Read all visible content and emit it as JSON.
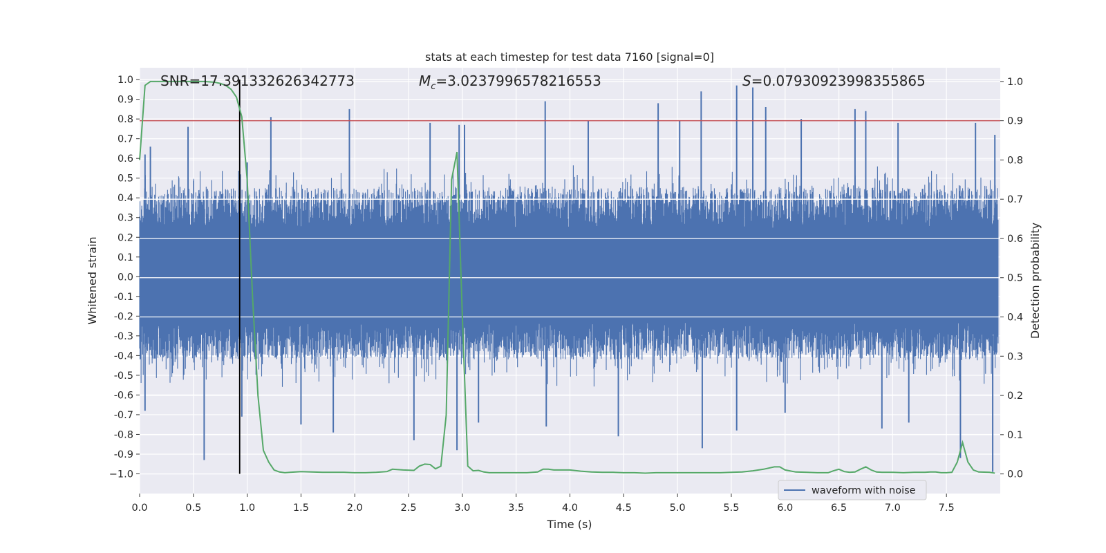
{
  "chart_data": {
    "type": "line",
    "title": "stats at each timestep for test data 7160 [signal=0]",
    "xlabel": "Time (s)",
    "ylabel_left": "Whitened strain",
    "ylabel_right": "Detection probability",
    "xlim": [
      0.0,
      8.0
    ],
    "ylim_left": [
      -1.1,
      1.06
    ],
    "ylim_right": [
      -0.05,
      1.035
    ],
    "x_ticks": [
      "0.0",
      "0.5",
      "1.0",
      "1.5",
      "2.0",
      "2.5",
      "3.0",
      "3.5",
      "4.0",
      "4.5",
      "5.0",
      "5.5",
      "6.0",
      "6.5",
      "7.0",
      "7.5"
    ],
    "x_tick_values": [
      0,
      0.5,
      1,
      1.5,
      2,
      2.5,
      3,
      3.5,
      4,
      4.5,
      5,
      5.5,
      6,
      6.5,
      7,
      7.5
    ],
    "y_left_ticks": [
      "1.0",
      "0.9",
      "0.8",
      "0.7",
      "0.6",
      "0.5",
      "0.4",
      "0.3",
      "0.2",
      "0.1",
      "0.0",
      "-0.1",
      "-0.2",
      "-0.3",
      "-0.4",
      "-0.5",
      "-0.6",
      "-0.7",
      "-0.8",
      "-0.9",
      "−1.0"
    ],
    "y_left_tick_values": [
      1.0,
      0.9,
      0.8,
      0.7,
      0.6,
      0.5,
      0.4,
      0.3,
      0.2,
      0.1,
      0.0,
      -0.1,
      -0.2,
      -0.3,
      -0.4,
      -0.5,
      -0.6,
      -0.7,
      -0.8,
      -0.9,
      -1.0
    ],
    "y_right_ticks": [
      "1.0",
      "0.9",
      "0.8",
      "0.7",
      "0.6",
      "0.5",
      "0.4",
      "0.3",
      "0.2",
      "0.1",
      "0.0"
    ],
    "y_right_tick_values": [
      1.0,
      0.9,
      0.8,
      0.7,
      0.6,
      0.5,
      0.4,
      0.3,
      0.2,
      0.1,
      0.0
    ],
    "annotations": {
      "snr": "SNR=17.391332626342773",
      "mc_symbol": "M",
      "mc_sub": "c",
      "mc_value": "=3.0237996578216553",
      "s_symbol": "S",
      "s_value": "=0.07930923998355865"
    },
    "threshold_line": {
      "y_right": 0.9,
      "color": "#c44e52"
    },
    "vertical_marker": {
      "x": 0.93,
      "y_range": [
        -1.0,
        1.0
      ],
      "color": "#000000"
    },
    "series": [
      {
        "name": "waveform with noise",
        "axis": "left",
        "color": "#4c72b0",
        "kind": "noise",
        "envelope_upper": 0.45,
        "envelope_lower": -0.42,
        "peaks_upper": [
          [
            0.05,
            0.62
          ],
          [
            0.1,
            0.66
          ],
          [
            0.45,
            0.76
          ],
          [
            1.0,
            0.58
          ],
          [
            1.22,
            0.81
          ],
          [
            1.95,
            0.85
          ],
          [
            2.7,
            0.78
          ],
          [
            2.97,
            0.77
          ],
          [
            3.02,
            0.77
          ],
          [
            3.77,
            0.89
          ],
          [
            4.17,
            0.79
          ],
          [
            4.82,
            0.88
          ],
          [
            5.02,
            0.79
          ],
          [
            5.22,
            0.94
          ],
          [
            5.55,
            0.97
          ],
          [
            5.7,
            0.96
          ],
          [
            5.82,
            0.86
          ],
          [
            6.15,
            0.8
          ],
          [
            6.65,
            0.85
          ],
          [
            6.75,
            0.84
          ],
          [
            7.05,
            0.78
          ],
          [
            7.77,
            0.78
          ],
          [
            7.95,
            0.72
          ]
        ],
        "peaks_lower": [
          [
            0.05,
            -0.68
          ],
          [
            0.6,
            -0.93
          ],
          [
            0.95,
            -0.71
          ],
          [
            1.5,
            -0.75
          ],
          [
            1.8,
            -0.79
          ],
          [
            2.55,
            -0.83
          ],
          [
            2.95,
            -0.88
          ],
          [
            3.15,
            -0.74
          ],
          [
            3.78,
            -0.76
          ],
          [
            4.45,
            -0.81
          ],
          [
            5.23,
            -0.87
          ],
          [
            5.55,
            -0.78
          ],
          [
            6.0,
            -0.69
          ],
          [
            6.9,
            -0.77
          ],
          [
            7.15,
            -0.74
          ],
          [
            7.63,
            -0.92
          ],
          [
            7.93,
            -0.99
          ]
        ]
      },
      {
        "name": "detection probability",
        "axis": "right",
        "color": "#55a868",
        "x": [
          0.0,
          0.05,
          0.1,
          0.2,
          0.3,
          0.4,
          0.5,
          0.6,
          0.7,
          0.75,
          0.8,
          0.85,
          0.9,
          0.95,
          1.0,
          1.05,
          1.1,
          1.15,
          1.2,
          1.25,
          1.3,
          1.35,
          1.4,
          1.5,
          1.6,
          1.7,
          1.8,
          1.9,
          2.0,
          2.1,
          2.2,
          2.3,
          2.35,
          2.45,
          2.55,
          2.6,
          2.65,
          2.7,
          2.75,
          2.8,
          2.85,
          2.9,
          2.95,
          3.0,
          3.05,
          3.1,
          3.15,
          3.2,
          3.25,
          3.3,
          3.4,
          3.5,
          3.6,
          3.7,
          3.75,
          3.8,
          3.85,
          3.9,
          4.0,
          4.1,
          4.2,
          4.3,
          4.4,
          4.5,
          4.6,
          4.7,
          4.8,
          4.9,
          5.0,
          5.1,
          5.2,
          5.3,
          5.4,
          5.5,
          5.6,
          5.7,
          5.8,
          5.9,
          5.95,
          6.0,
          6.1,
          6.2,
          6.3,
          6.4,
          6.45,
          6.5,
          6.55,
          6.6,
          6.65,
          6.7,
          6.75,
          6.8,
          6.85,
          6.9,
          7.0,
          7.1,
          7.2,
          7.3,
          7.35,
          7.4,
          7.45,
          7.5,
          7.55,
          7.6,
          7.65,
          7.7,
          7.75,
          7.8,
          7.9,
          7.95
        ],
        "y": [
          0.8,
          0.99,
          1.0,
          1.0,
          1.0,
          1.0,
          1.0,
          1.0,
          0.998,
          0.995,
          0.99,
          0.98,
          0.96,
          0.91,
          0.75,
          0.45,
          0.2,
          0.06,
          0.03,
          0.01,
          0.005,
          0.003,
          0.004,
          0.006,
          0.005,
          0.004,
          0.004,
          0.004,
          0.003,
          0.003,
          0.004,
          0.006,
          0.012,
          0.01,
          0.009,
          0.02,
          0.025,
          0.024,
          0.013,
          0.02,
          0.15,
          0.75,
          0.82,
          0.4,
          0.02,
          0.008,
          0.009,
          0.005,
          0.003,
          0.003,
          0.003,
          0.003,
          0.003,
          0.005,
          0.012,
          0.012,
          0.01,
          0.01,
          0.01,
          0.007,
          0.005,
          0.004,
          0.004,
          0.003,
          0.003,
          0.002,
          0.003,
          0.003,
          0.003,
          0.003,
          0.003,
          0.003,
          0.003,
          0.004,
          0.005,
          0.008,
          0.012,
          0.018,
          0.018,
          0.01,
          0.005,
          0.004,
          0.003,
          0.003,
          0.008,
          0.012,
          0.006,
          0.004,
          0.005,
          0.012,
          0.018,
          0.01,
          0.005,
          0.004,
          0.004,
          0.003,
          0.004,
          0.004,
          0.005,
          0.005,
          0.003,
          0.003,
          0.004,
          0.03,
          0.08,
          0.03,
          0.01,
          0.005,
          0.004,
          0.002
        ]
      }
    ],
    "legend": {
      "location": "lower-right",
      "entries": [
        "waveform with noise"
      ]
    }
  }
}
